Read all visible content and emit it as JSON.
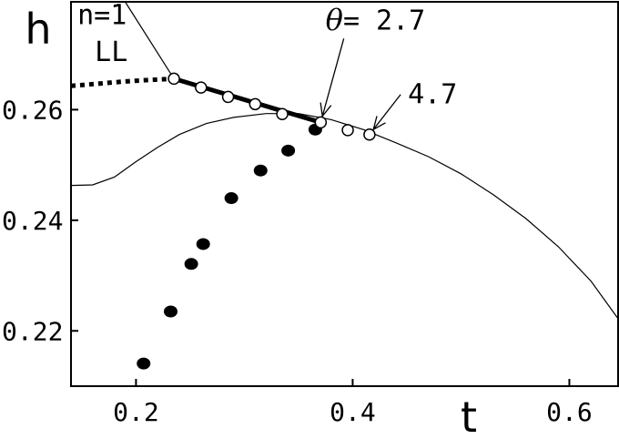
{
  "chart_data": {
    "type": "scatter",
    "title": "",
    "xlabel": "t",
    "ylabel": "h",
    "xlim": [
      0.14,
      0.645
    ],
    "ylim": [
      0.21,
      0.2795
    ],
    "x_ticks": [
      0.2,
      0.4,
      0.6
    ],
    "x_tick_labels": [
      "0.2",
      "0.4",
      "0.6"
    ],
    "y_ticks": [
      0.22,
      0.24,
      0.26
    ],
    "y_tick_labels": [
      "0.22",
      "0.24",
      "0.26"
    ],
    "grid": false,
    "series": [
      {
        "kind": "thin-line-upper",
        "x": [
          0.19,
          0.235
        ],
        "y": [
          0.2795,
          0.2656
        ]
      },
      {
        "kind": "thin-line-lower",
        "x": [
          0.14,
          0.16,
          0.18,
          0.2,
          0.22,
          0.24,
          0.265,
          0.29,
          0.32,
          0.35,
          0.38,
          0.41,
          0.44,
          0.47,
          0.5,
          0.53,
          0.56,
          0.59,
          0.62,
          0.645
        ],
        "y": [
          0.2463,
          0.2464,
          0.2478,
          0.2506,
          0.2532,
          0.2555,
          0.2575,
          0.2586,
          0.2593,
          0.2593,
          0.2582,
          0.2564,
          0.254,
          0.2515,
          0.2484,
          0.2446,
          0.2403,
          0.2352,
          0.229,
          0.2222
        ]
      },
      {
        "kind": "dotted-line",
        "x": [
          0.14,
          0.165,
          0.19,
          0.215,
          0.235
        ],
        "y": [
          0.2643,
          0.2647,
          0.2651,
          0.2654,
          0.2656
        ]
      },
      {
        "kind": "thick-line",
        "x": [
          0.235,
          0.3705
        ],
        "y": [
          0.2656,
          0.2577
        ]
      },
      {
        "kind": "open-circles",
        "x": [
          0.235,
          0.26,
          0.285,
          0.31,
          0.335,
          0.3705,
          0.3955,
          0.4155
        ],
        "y": [
          0.2656,
          0.264,
          0.2623,
          0.261,
          0.2592,
          0.2577,
          0.2563,
          0.2555
        ]
      },
      {
        "kind": "filled-circles",
        "x": [
          0.207,
          0.232,
          0.251,
          0.262,
          0.288,
          0.315,
          0.3405,
          0.3655
        ],
        "y": [
          0.2141,
          0.2235,
          0.2321,
          0.2357,
          0.244,
          0.249,
          0.2526,
          0.2564
        ]
      }
    ],
    "annotations": [
      {
        "text": "n=1",
        "x": 0.146,
        "y": 0.2755
      },
      {
        "text": "LL",
        "x": 0.162,
        "y": 0.2688
      },
      {
        "text": "θ= 2.7",
        "x": 0.375,
        "y": 0.2745,
        "arrow_to": [
          0.3705,
          0.2577
        ]
      },
      {
        "text": "4.7",
        "x": 0.451,
        "y": 0.2611,
        "arrow_to": [
          0.4155,
          0.2555
        ]
      }
    ]
  }
}
